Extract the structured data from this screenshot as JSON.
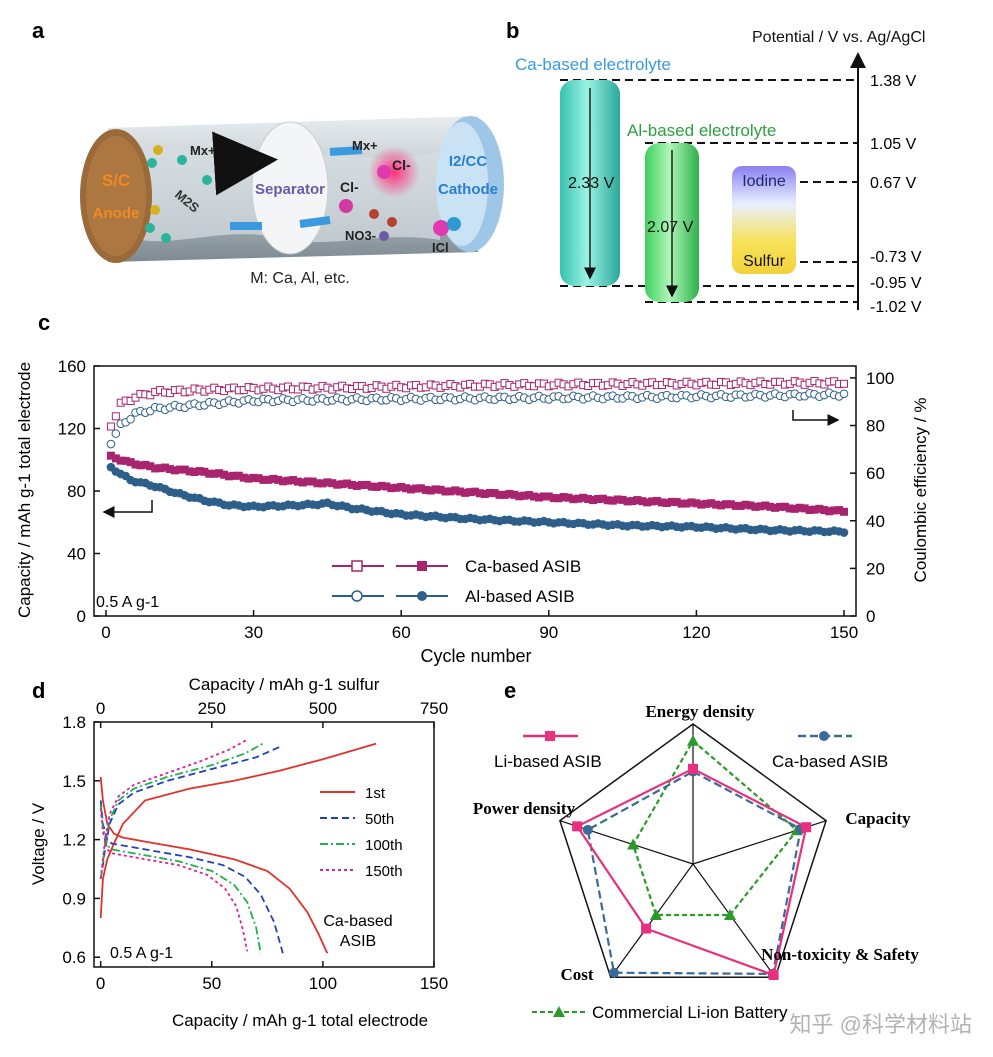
{
  "panels": {
    "a": {
      "letter": "a",
      "anode_line1": "S/C",
      "anode_line2": "Anode",
      "m2s": "M2S",
      "mx_left": "Mx+",
      "separator": "Separator",
      "cl_left": "Cl-",
      "mx_right": "Mx+",
      "cl_right": "Cl-",
      "no3": "NO3-",
      "icl": "ICl",
      "cathode_line1": "I2/CC",
      "cathode_line2": "Cathode",
      "caption": "M: Ca, Al, etc."
    },
    "b": {
      "letter": "b",
      "axis_title": "Potential / V vs. Ag/AgCl",
      "ca_label": "Ca-based electrolyte",
      "al_label": "Al-based electrolyte",
      "ca_window": "2.33 V",
      "al_window": "2.07 V",
      "iodine": "Iodine",
      "sulfur": "Sulfur",
      "levels": [
        "1.38 V",
        "1.05 V",
        "0.67 V",
        "-0.73 V",
        "-0.95 V",
        "-1.02 V"
      ]
    },
    "c": {
      "letter": "c",
      "xlabel": "Cycle number",
      "ylabel_left": "Capacity / mAh g-1 total electrode",
      "ylabel_right": "Coulombic efficiency / %",
      "xticks": [
        "0",
        "30",
        "60",
        "90",
        "120",
        "150"
      ],
      "yticks_left": [
        "0",
        "40",
        "80",
        "120",
        "160"
      ],
      "yticks_right": [
        "0",
        "20",
        "40",
        "60",
        "80",
        "100"
      ],
      "legend": [
        "Ca-based ASIB",
        "Al-based ASIB"
      ],
      "rate": "0.5 A g-1",
      "colors": {
        "ca": "#a8246e",
        "al": "#2e5f8a"
      }
    },
    "d": {
      "letter": "d",
      "xlabel_bottom": "Capacity / mAh g-1 total electrode",
      "xlabel_top": "Capacity / mAh g-1 sulfur",
      "ylabel": "Voltage / V",
      "xticks_bottom": [
        "0",
        "50",
        "100",
        "150"
      ],
      "xticks_top": [
        "0",
        "250",
        "500",
        "750"
      ],
      "yticks": [
        "0.6",
        "0.9",
        "1.2",
        "1.5",
        "1.8"
      ],
      "legend": [
        "1st",
        "50th",
        "100th",
        "150th"
      ],
      "rate": "0.5 A g-1",
      "note_line1": "Ca-based",
      "note_line2": "ASIB",
      "colors": [
        "#e0322a",
        "#1f3fbf",
        "#22b04a",
        "#e0209a"
      ]
    },
    "e": {
      "letter": "e",
      "axes": [
        "Energy density",
        "Capacity",
        "Non-toxicity & Safety",
        "Cost",
        "Power density"
      ],
      "legend": [
        "Li-based ASIB",
        "Ca-based ASIB",
        "Commercial Li-ion Battery"
      ],
      "colors": {
        "li": "#e8307f",
        "ca": "#3a6a9a",
        "commercial": "#2a9a2a"
      },
      "watermark": "知乎 @科学材料站"
    }
  },
  "chart_data": [
    {
      "type": "line",
      "panel": "c",
      "xlabel": "Cycle number",
      "ylabel": "Capacity / mAh g-1 total electrode",
      "y2label": "Coulombic efficiency / %",
      "xlim": [
        0,
        150
      ],
      "ylim": [
        0,
        160
      ],
      "y2lim": [
        0,
        105
      ],
      "series": [
        {
          "name": "Ca-based ASIB",
          "kind": "capacity",
          "axis": "left",
          "x": [
            1,
            5,
            10,
            20,
            30,
            45,
            60,
            75,
            90,
            105,
            120,
            135,
            150
          ],
          "y": [
            102,
            98,
            95,
            92,
            88,
            85,
            82,
            79,
            76,
            74,
            72,
            70,
            67
          ]
        },
        {
          "name": "Al-based ASIB",
          "kind": "capacity",
          "axis": "left",
          "x": [
            1,
            5,
            10,
            15,
            20,
            25,
            30,
            40,
            45,
            50,
            60,
            75,
            90,
            105,
            120,
            135,
            150
          ],
          "y": [
            95,
            87,
            83,
            78,
            74,
            71,
            70,
            71,
            72,
            69,
            65,
            62,
            60,
            58,
            57,
            55,
            54
          ]
        },
        {
          "name": "Ca-based ASIB",
          "kind": "coulombic efficiency",
          "axis": "right",
          "x": [
            1,
            3,
            6,
            10,
            20,
            30,
            50,
            80,
            110,
            150
          ],
          "y": [
            80,
            89,
            92,
            94,
            95,
            95.5,
            96,
            97,
            97.5,
            98
          ]
        },
        {
          "name": "Al-based ASIB",
          "kind": "coulombic efficiency",
          "axis": "right",
          "x": [
            1,
            3,
            6,
            10,
            20,
            30,
            50,
            80,
            110,
            150
          ],
          "y": [
            73,
            80,
            85,
            87,
            89,
            90.5,
            91,
            91.5,
            92,
            93
          ]
        }
      ]
    },
    {
      "type": "line",
      "panel": "d",
      "xlabel": "Capacity / mAh g-1 total electrode",
      "ylabel": "Voltage / V",
      "xlim": [
        -3,
        150
      ],
      "ylim": [
        0.55,
        1.8
      ],
      "series": [
        {
          "name": "1st",
          "segment": "discharge",
          "x": [
            0,
            1,
            3,
            6,
            10,
            20,
            40,
            60,
            75,
            85,
            93,
            98,
            102
          ],
          "y": [
            1.52,
            1.4,
            1.28,
            1.23,
            1.21,
            1.19,
            1.15,
            1.1,
            1.04,
            0.95,
            0.83,
            0.72,
            0.62
          ]
        },
        {
          "name": "1st",
          "segment": "charge",
          "x": [
            0,
            1,
            3,
            6,
            10,
            20,
            40,
            60,
            80,
            100,
            124
          ],
          "y": [
            0.8,
            1.0,
            1.1,
            1.18,
            1.28,
            1.4,
            1.46,
            1.5,
            1.55,
            1.61,
            1.69
          ]
        },
        {
          "name": "50th",
          "segment": "discharge",
          "x": [
            0,
            1,
            3,
            5,
            10,
            20,
            40,
            55,
            65,
            72,
            78,
            82
          ],
          "y": [
            1.4,
            1.28,
            1.2,
            1.18,
            1.17,
            1.15,
            1.11,
            1.07,
            1.01,
            0.92,
            0.78,
            0.62
          ]
        },
        {
          "name": "50th",
          "segment": "charge",
          "x": [
            0,
            1,
            2,
            4,
            8,
            15,
            30,
            50,
            70,
            82
          ],
          "y": [
            1.0,
            1.07,
            1.15,
            1.28,
            1.38,
            1.44,
            1.5,
            1.56,
            1.62,
            1.68
          ]
        },
        {
          "name": "100th",
          "segment": "discharge",
          "x": [
            0,
            1,
            3,
            5,
            10,
            20,
            35,
            50,
            60,
            66,
            70,
            72
          ],
          "y": [
            1.38,
            1.26,
            1.17,
            1.15,
            1.14,
            1.12,
            1.09,
            1.04,
            0.97,
            0.88,
            0.75,
            0.62
          ]
        },
        {
          "name": "100th",
          "segment": "charge",
          "x": [
            0,
            1,
            2,
            4,
            8,
            15,
            30,
            50,
            65,
            73
          ],
          "y": [
            1.0,
            1.08,
            1.18,
            1.3,
            1.4,
            1.46,
            1.52,
            1.58,
            1.64,
            1.69
          ]
        },
        {
          "name": "150th",
          "segment": "discharge",
          "x": [
            0,
            1,
            3,
            5,
            10,
            20,
            35,
            48,
            56,
            61,
            64,
            66
          ],
          "y": [
            1.36,
            1.24,
            1.15,
            1.13,
            1.12,
            1.1,
            1.07,
            1.02,
            0.95,
            0.86,
            0.74,
            0.63
          ]
        },
        {
          "name": "150th",
          "segment": "charge",
          "x": [
            0,
            1,
            2,
            4,
            8,
            15,
            30,
            45,
            58,
            66
          ],
          "y": [
            1.0,
            1.1,
            1.2,
            1.33,
            1.42,
            1.48,
            1.54,
            1.6,
            1.66,
            1.71
          ]
        }
      ]
    },
    {
      "type": "radar",
      "panel": "e",
      "axes": [
        "Energy density",
        "Capacity",
        "Non-toxicity & Safety",
        "Cost",
        "Power density"
      ],
      "range": [
        0,
        1
      ],
      "series": [
        {
          "name": "Li-based ASIB",
          "values": [
            0.68,
            0.85,
            0.98,
            0.57,
            0.87
          ]
        },
        {
          "name": "Ca-based ASIB",
          "values": [
            0.66,
            0.81,
            0.97,
            0.96,
            0.79
          ]
        },
        {
          "name": "Commercial Li-ion Battery",
          "values": [
            0.88,
            0.78,
            0.45,
            0.45,
            0.45
          ]
        }
      ]
    }
  ]
}
